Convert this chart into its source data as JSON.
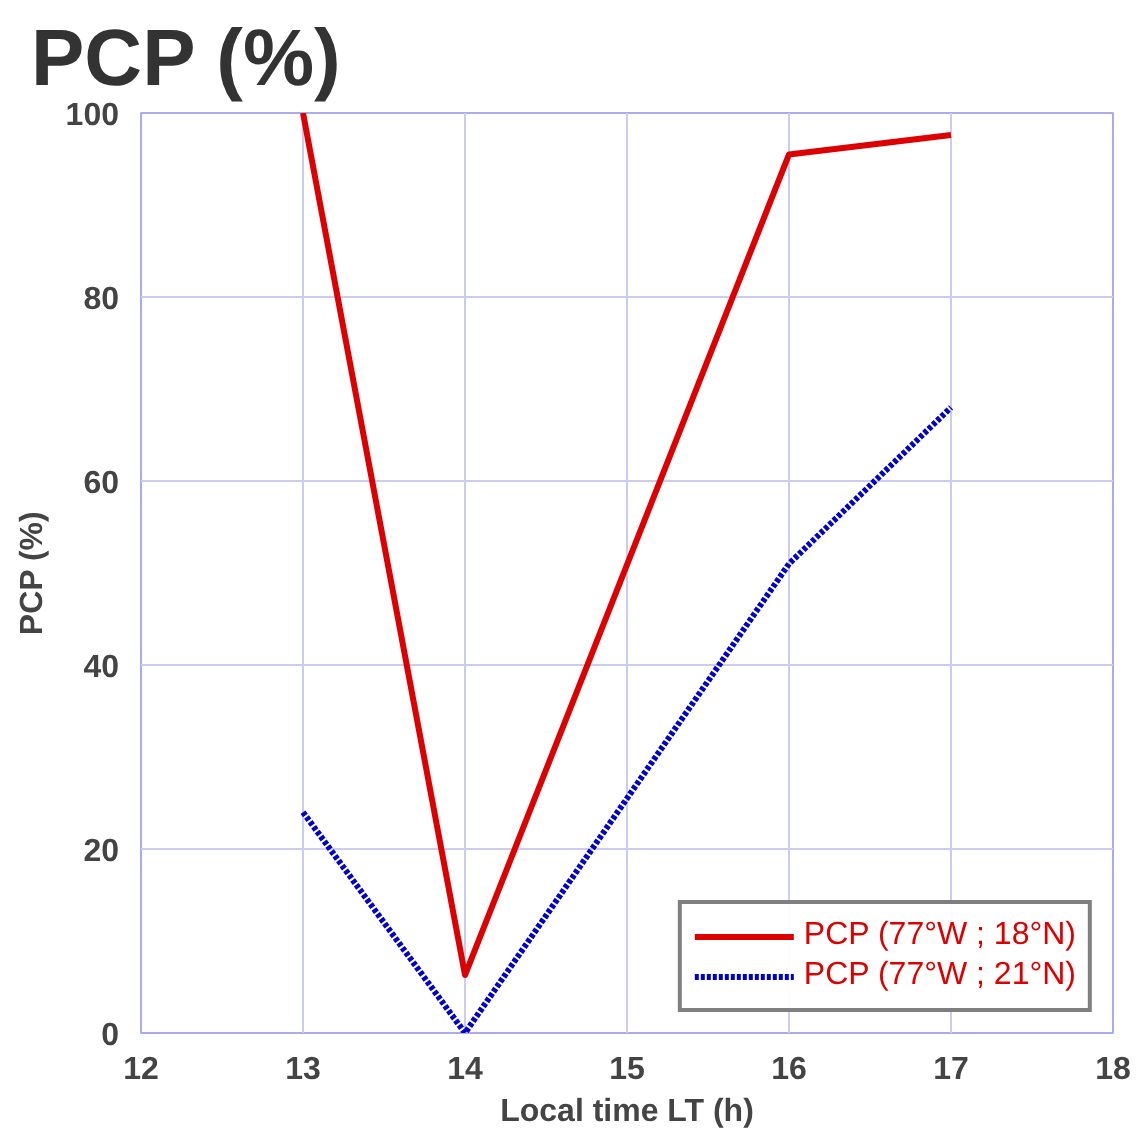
{
  "chart_data": {
    "type": "line",
    "title": "PCP (%)",
    "xlabel": "Local time LT (h)",
    "ylabel": "PCP (%)",
    "x": [
      13,
      14,
      16,
      17
    ],
    "series": [
      {
        "name": "PCP (77°W ; 18°N)",
        "color": "#dd0000",
        "values": [
          100,
          6.3,
          95.5,
          97.6
        ],
        "line_style": "solid"
      },
      {
        "name": "PCP (77°W ; 21°N)",
        "color": "#0000cc",
        "values": [
          24,
          0,
          51,
          68
        ],
        "line_style": "dotted"
      }
    ],
    "xlim": [
      12,
      18
    ],
    "xticks": [
      12,
      13,
      14,
      15,
      16,
      17,
      18
    ],
    "ylim": [
      0,
      100
    ],
    "yticks": [
      0,
      20,
      40,
      60,
      80,
      100
    ],
    "grid": true,
    "legend": "bottom right",
    "marker": "none"
  }
}
